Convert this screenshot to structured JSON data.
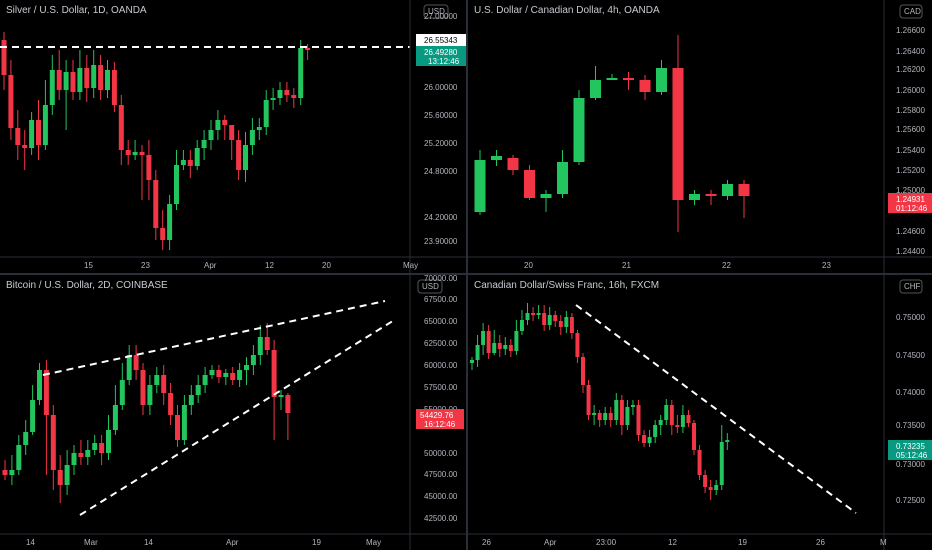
{
  "charts": [
    {
      "id": "silver",
      "title": "Silver / U.S. Dollar, 1D, OANDA",
      "currency_badge": "USD",
      "price_ticks": [
        "27.00000",
        "26.55343",
        "26.49280",
        "26.00000",
        "25.60000",
        "25.20000",
        "24.80000",
        "24.20000",
        "23.90000"
      ],
      "price_values": [
        27.0,
        26.0,
        25.6,
        25.2,
        24.8,
        24.2,
        23.9
      ],
      "time_labels": [
        "15",
        "23",
        "Apr",
        "12",
        "20",
        "May"
      ],
      "last_price_label": "26.55343",
      "current_price_label": "26.49280",
      "countdown_label": "13:12:46",
      "label_colors": {
        "last": "#ffffff",
        "current": "#089981"
      }
    },
    {
      "id": "usdcad",
      "title": "U.S. Dollar / Canadian Dollar, 4h, OANDA",
      "currency_badge": "CAD",
      "price_ticks": [
        "1.26600",
        "1.26400",
        "1.26200",
        "1.26000",
        "1.25800",
        "1.25600",
        "1.25400",
        "1.25200",
        "1.25000",
        "1.24600",
        "1.24400"
      ],
      "time_labels": [
        "20",
        "21",
        "22",
        "23"
      ],
      "current_price_label": "1.24931",
      "countdown_label": "01:12:46",
      "label_colors": {
        "current": "#f23645"
      }
    },
    {
      "id": "btcusd",
      "title": "Bitcoin / U.S. Dollar, 2D, COINBASE",
      "currency_badge": "USD",
      "price_ticks": [
        "70000.00",
        "67500.00",
        "65000.00",
        "62500.00",
        "60000.00",
        "57500.00",
        "55000.00",
        "50000.00",
        "47500.00",
        "45000.00",
        "42500.00"
      ],
      "time_labels": [
        "14",
        "Mar",
        "14",
        "Apr",
        "19",
        "May"
      ],
      "current_price_label": "54429.76",
      "countdown_label": "16:12:46",
      "label_colors": {
        "current": "#f23645"
      }
    },
    {
      "id": "cadchf",
      "title": "Canadian Dollar/Swiss Franc, 16h, FXCM",
      "currency_badge": "CHF",
      "price_ticks": [
        "0.75000",
        "0.74500",
        "0.74000",
        "0.73500",
        "0.73000",
        "0.72500"
      ],
      "time_labels": [
        "26",
        "Apr",
        "23:00",
        "12",
        "19",
        "26",
        "M"
      ],
      "current_price_label": "0.73235",
      "countdown_label": "05:12:46",
      "label_colors": {
        "current": "#089981"
      }
    }
  ],
  "colors": {
    "up": "#22c55e",
    "down": "#f23645",
    "axis_text": "#b2b5be",
    "grid": "#111",
    "line": "#ffffff"
  }
}
